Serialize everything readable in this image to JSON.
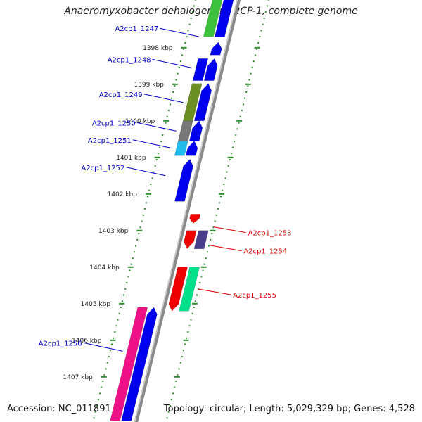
{
  "title": "Anaeromyxobacter dehalogenans 2CP-1, complete genome",
  "accession": "Accession: NC_011891",
  "stats": "Topology: circular; Length: 5,029,329 bp; Genes: 4,528",
  "colors": {
    "backbone": "#8a8a8a",
    "tick": "#2e8b2e",
    "plus_label": "#0000cc",
    "minus_label": "#dd0000"
  },
  "ticks": [
    {
      "label": "1398 kbp",
      "kbp": 1398
    },
    {
      "label": "1399 kbp",
      "kbp": 1399
    },
    {
      "label": "1400 kbp",
      "kbp": 1400
    },
    {
      "label": "1401 kbp",
      "kbp": 1401
    },
    {
      "label": "1402 kbp",
      "kbp": 1402
    },
    {
      "label": "1403 kbp",
      "kbp": 1403
    },
    {
      "label": "1404 kbp",
      "kbp": 1404
    },
    {
      "label": "1405 kbp",
      "kbp": 1405
    },
    {
      "label": "1406 kbp",
      "kbp": 1406
    },
    {
      "label": "1407 kbp",
      "kbp": 1407
    }
  ],
  "features": [
    {
      "ring": "cog-plus",
      "start": 1396.5,
      "end": 1397.7,
      "color": "#3ec23e"
    },
    {
      "ring": "plus",
      "start": 1396.5,
      "end": 1397.7,
      "color": "#0000ee",
      "arrow": true
    },
    {
      "ring": "plus",
      "start": 1397.85,
      "end": 1398.2,
      "color": "#0000ee",
      "arrow": true
    },
    {
      "ring": "cog-plus",
      "start": 1398.3,
      "end": 1398.9,
      "color": "#0000ee"
    },
    {
      "ring": "plus",
      "start": 1398.3,
      "end": 1398.9,
      "color": "#0000ee",
      "arrow": true
    },
    {
      "ring": "cog-plus",
      "start": 1398.98,
      "end": 1400.0,
      "color": "#6b8e23"
    },
    {
      "ring": "plus",
      "start": 1398.98,
      "end": 1400.0,
      "color": "#0000ee",
      "arrow": true
    },
    {
      "ring": "cog-plus",
      "start": 1400.0,
      "end": 1400.55,
      "color": "#777777"
    },
    {
      "ring": "plus",
      "start": 1400.0,
      "end": 1400.55,
      "color": "#0000ee",
      "arrow": true
    },
    {
      "ring": "cog-plus",
      "start": 1400.55,
      "end": 1400.95,
      "color": "#22bbee"
    },
    {
      "ring": "plus",
      "start": 1400.55,
      "end": 1400.95,
      "color": "#0000ee",
      "arrow": true
    },
    {
      "ring": "plus",
      "start": 1401.05,
      "end": 1402.2,
      "color": "#0000ee",
      "arrow": true
    },
    {
      "ring": "minus",
      "start": 1402.55,
      "end": 1402.8,
      "color": "#ee0000",
      "arrow": true
    },
    {
      "ring": "minus",
      "start": 1403.0,
      "end": 1403.5,
      "color": "#ee0000",
      "arrow": true
    },
    {
      "ring": "cog-minus",
      "start": 1403.0,
      "end": 1403.5,
      "color": "#483d8b"
    },
    {
      "ring": "minus",
      "start": 1404.0,
      "end": 1405.2,
      "color": "#ee0000",
      "arrow": true
    },
    {
      "ring": "cog-minus",
      "start": 1404.0,
      "end": 1405.2,
      "color": "#00e08a"
    },
    {
      "ring": "cog-plus",
      "start": 1405.1,
      "end": 1408.2,
      "color": "#ee1188"
    },
    {
      "ring": "plus",
      "start": 1405.1,
      "end": 1408.2,
      "color": "#0000ee",
      "arrow": true
    }
  ],
  "labels": [
    {
      "text": "A2cp1_1247",
      "kbp": 1397.7,
      "side": "plus"
    },
    {
      "text": "A2cp1_1248",
      "kbp": 1398.55,
      "side": "plus"
    },
    {
      "text": "A2cp1_1249",
      "kbp": 1399.5,
      "side": "plus"
    },
    {
      "text": "A2cp1_1250",
      "kbp": 1400.28,
      "side": "plus"
    },
    {
      "text": "A2cp1_1251",
      "kbp": 1400.75,
      "side": "plus"
    },
    {
      "text": "A2cp1_1252",
      "kbp": 1401.5,
      "side": "plus"
    },
    {
      "text": "A2cp1_1253",
      "kbp": 1402.9,
      "side": "minus"
    },
    {
      "text": "A2cp1_1254",
      "kbp": 1403.4,
      "side": "minus"
    },
    {
      "text": "A2cp1_1255",
      "kbp": 1404.6,
      "side": "minus"
    },
    {
      "text": "A2cp1_1256",
      "kbp": 1406.3,
      "side": "plus"
    }
  ]
}
